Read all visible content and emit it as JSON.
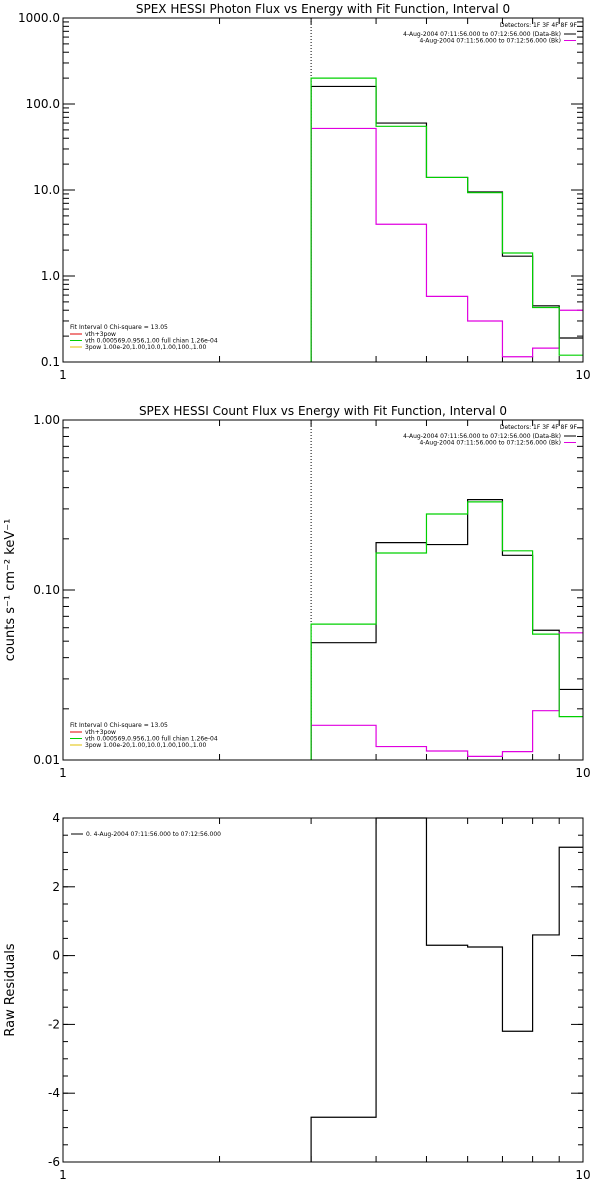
{
  "chart_data": [
    {
      "type": "line",
      "title": "SPEX HESSI Photon Flux vs Energy with Fit Function, Interval 0",
      "ylabel": "",
      "xlim": [
        1,
        10
      ],
      "ylim": [
        0.1,
        1000
      ],
      "xscale": "log",
      "yscale": "log",
      "xticks": [
        {
          "v": 1,
          "label": "1"
        },
        {
          "v": 10,
          "label": "10"
        }
      ],
      "yticks": [
        {
          "v": 0.1,
          "label": "0.1"
        },
        {
          "v": 1,
          "label": "1.0"
        },
        {
          "v": 10,
          "label": "10.0"
        },
        {
          "v": 100,
          "label": "100.0"
        },
        {
          "v": 1000,
          "label": "1000.0"
        }
      ],
      "vline": 3,
      "detectors": "Detectors: 1F 3F 4F 8F 9F",
      "series": [
        {
          "name": "4-Aug-2004 07:11:56.000 to 07:12:56.000 (Data-Bk)",
          "color": "#000000",
          "edges": [
            3,
            4,
            5,
            6,
            7,
            8,
            9,
            10
          ],
          "values": [
            160,
            60,
            14,
            9.5,
            1.7,
            0.45,
            0.19
          ]
        },
        {
          "name": "4-Aug-2004 07:11:56.000 to 07:12:56.000 (Bk)",
          "color": "#e000e0",
          "edges": [
            3,
            4,
            5,
            6,
            7,
            8,
            9,
            10
          ],
          "values": [
            52,
            4,
            0.58,
            0.3,
            0.115,
            0.145,
            0.4
          ]
        },
        {
          "name": "vth 0.000569,0.956,1.00  full chian 1.26e-04",
          "color": "#00d000",
          "edges": [
            3,
            4,
            5,
            6,
            7,
            8,
            9,
            10
          ],
          "values": [
            200,
            55,
            14,
            9.3,
            1.85,
            0.43,
            0.12
          ]
        }
      ],
      "fit_legend": {
        "header": "Fit Interval 0   Chi-square = 13.05",
        "items": [
          {
            "label": "vth+3pow",
            "color": "#e00000"
          },
          {
            "label": "vth 0.000569,0.956,1.00  full chian 1.26e-04",
            "color": "#00d000"
          },
          {
            "label": "3pow 1.00e-20,1.00,10.0,1.00,100.,1.00",
            "color": "#e0c000"
          }
        ]
      }
    },
    {
      "type": "line",
      "title": "SPEX HESSI Count Flux vs Energy with Fit Function, Interval 0",
      "ylabel": "counts s⁻¹ cm⁻² keV⁻¹",
      "xlim": [
        1,
        10
      ],
      "ylim": [
        0.01,
        1
      ],
      "xscale": "log",
      "yscale": "log",
      "xticks": [
        {
          "v": 1,
          "label": "1"
        },
        {
          "v": 10,
          "label": "10"
        }
      ],
      "yticks": [
        {
          "v": 0.01,
          "label": "0.01"
        },
        {
          "v": 0.1,
          "label": "0.10"
        },
        {
          "v": 1,
          "label": "1.00"
        }
      ],
      "vline": 3,
      "detectors": "Detectors: 1F 3F 4F 8F 9F",
      "series": [
        {
          "name": "4-Aug-2004 07:11:56.000 to 07:12:56.000 (Data-Bk)",
          "color": "#000000",
          "edges": [
            3,
            4,
            5,
            6,
            7,
            8,
            9,
            10
          ],
          "values": [
            0.049,
            0.19,
            0.185,
            0.34,
            0.16,
            0.058,
            0.026
          ]
        },
        {
          "name": "4-Aug-2004 07:11:56.000 to 07:12:56.000 (Bk)",
          "color": "#e000e0",
          "edges": [
            3,
            4,
            5,
            6,
            7,
            8,
            9,
            10
          ],
          "values": [
            0.016,
            0.012,
            0.0113,
            0.0105,
            0.0112,
            0.0195,
            0.056
          ]
        },
        {
          "name": "vth 0.000569,0.956,1.00  full chian 1.26e-04",
          "color": "#00d000",
          "edges": [
            3,
            4,
            5,
            6,
            7,
            8,
            9,
            10
          ],
          "values": [
            0.063,
            0.165,
            0.28,
            0.33,
            0.17,
            0.055,
            0.018
          ]
        }
      ],
      "fit_legend": {
        "header": "Fit Interval 0   Chi-square = 13.05",
        "items": [
          {
            "label": "vth+3pow",
            "color": "#e00000"
          },
          {
            "label": "vth 0.000569,0.956,1.00  full chian 1.26e-04",
            "color": "#00d000"
          },
          {
            "label": "3pow 1.00e-20,1.00,10.0,1.00,100.,1.00",
            "color": "#e0c000"
          }
        ]
      }
    },
    {
      "type": "line",
      "title": "",
      "ylabel": "Raw Residuals",
      "xlim": [
        1,
        10
      ],
      "ylim": [
        -6,
        4
      ],
      "xscale": "log",
      "yscale": "linear",
      "xticks": [
        {
          "v": 1,
          "label": "1"
        },
        {
          "v": 10,
          "label": "10"
        }
      ],
      "yticks": [
        {
          "v": -6,
          "label": "-6"
        },
        {
          "v": -4,
          "label": "-4"
        },
        {
          "v": -2,
          "label": "-2"
        },
        {
          "v": 0,
          "label": "0"
        },
        {
          "v": 2,
          "label": "2"
        },
        {
          "v": 4,
          "label": "4"
        }
      ],
      "series": [
        {
          "name": "0.  4-Aug-2004 07:11:56.000 to 07:12:56.000",
          "color": "#000000",
          "edges": [
            3,
            4,
            5,
            6,
            7,
            8,
            9,
            10
          ],
          "values": [
            -4.7,
            4.0,
            0.3,
            0.25,
            -2.2,
            0.6,
            3.15
          ]
        }
      ]
    }
  ]
}
